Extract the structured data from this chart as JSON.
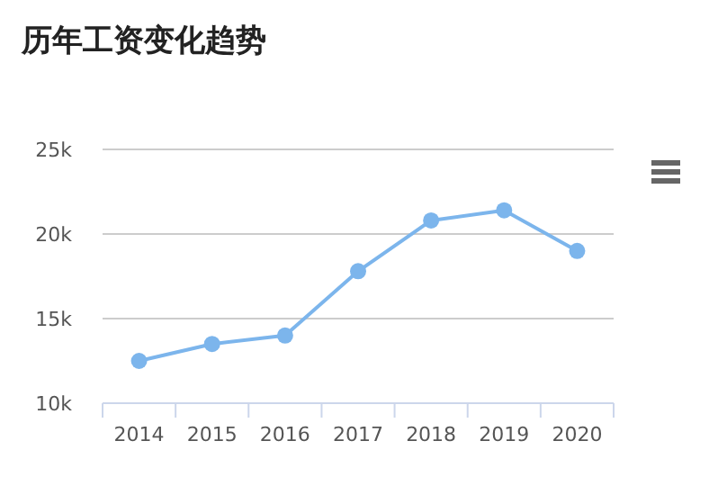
{
  "chart_data": {
    "type": "line",
    "title": "历年工资变化趋势",
    "categories": [
      "2014",
      "2015",
      "2016",
      "2017",
      "2018",
      "2019",
      "2020"
    ],
    "values": [
      12500,
      13500,
      14000,
      17800,
      20800,
      21400,
      19000
    ],
    "color": "#7cb5ec",
    "marker": "circle",
    "ylim": [
      10000,
      25000
    ],
    "yticks": [
      {
        "value": 10000,
        "label": "10k"
      },
      {
        "value": 15000,
        "label": "15k"
      },
      {
        "value": 20000,
        "label": "20k"
      },
      {
        "value": 25000,
        "label": "25k"
      }
    ],
    "grid": "y"
  }
}
